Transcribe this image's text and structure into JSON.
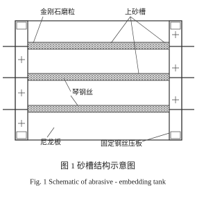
{
  "labels": {
    "diamond_abrasive": "金刚石磨粒",
    "upper_tank": "上砂槽",
    "piano_wire": "琴钢丝",
    "nylon_plate": "尼龙板",
    "wire_clamp": "固定钢丝压板"
  },
  "caption": {
    "chinese": "图 1   砂槽结构示意图",
    "english": "Fig. 1 Schematic of abrasive - embedding tank"
  }
}
